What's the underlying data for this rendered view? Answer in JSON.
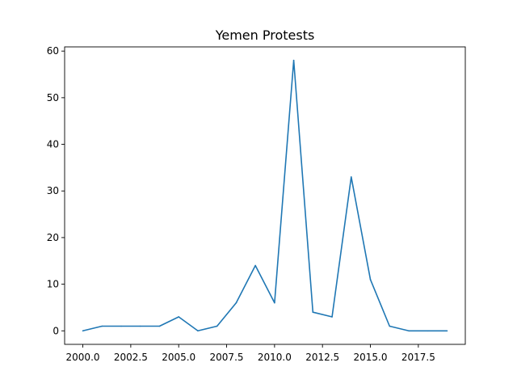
{
  "chart_data": {
    "type": "line",
    "title": "Yemen Protests",
    "xlabel": "",
    "ylabel": "",
    "x": [
      2000,
      2001,
      2002,
      2003,
      2004,
      2005,
      2006,
      2007,
      2008,
      2009,
      2010,
      2011,
      2012,
      2013,
      2014,
      2015,
      2016,
      2017,
      2018,
      2019
    ],
    "series": [
      {
        "values": [
          0,
          1,
          1,
          1,
          1,
          3,
          0,
          1,
          6,
          14,
          6,
          58,
          4,
          3,
          33,
          11,
          1,
          0,
          0,
          0
        ],
        "color": "#1f77b4"
      }
    ],
    "xlim": [
      1999.05,
      2019.95
    ],
    "ylim": [
      -2.9,
      60.9
    ],
    "xticks": [
      "2000.0",
      "2002.5",
      "2005.0",
      "2007.5",
      "2010.0",
      "2012.5",
      "2015.0",
      "2017.5"
    ],
    "xtick_values": [
      2000,
      2002.5,
      2005,
      2007.5,
      2010,
      2012.5,
      2015,
      2017.5
    ],
    "yticks": [
      "0",
      "10",
      "20",
      "30",
      "40",
      "50",
      "60"
    ],
    "ytick_values": [
      0,
      10,
      20,
      30,
      40,
      50,
      60
    ],
    "grid": false,
    "legend": "none"
  }
}
